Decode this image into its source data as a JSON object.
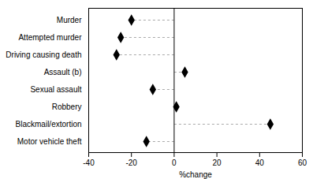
{
  "chart_data": {
    "type": "lollipop",
    "orientation": "horizontal",
    "categories": [
      "Murder",
      "Attempted murder",
      "Driving causing death",
      "Assault (b)",
      "Sexual assault",
      "Robbery",
      "Blackmail/extortion",
      "Motor vehicle theft"
    ],
    "values": [
      -20,
      -25,
      -27,
      5,
      -10,
      1,
      45,
      -13
    ],
    "xlabel": "%change",
    "xlim": [
      -40,
      60
    ],
    "xticks": [
      -40,
      -20,
      0,
      20,
      40,
      60
    ],
    "color": "#000000",
    "marker": "diamond",
    "line_style": "dashed",
    "grid": false
  }
}
